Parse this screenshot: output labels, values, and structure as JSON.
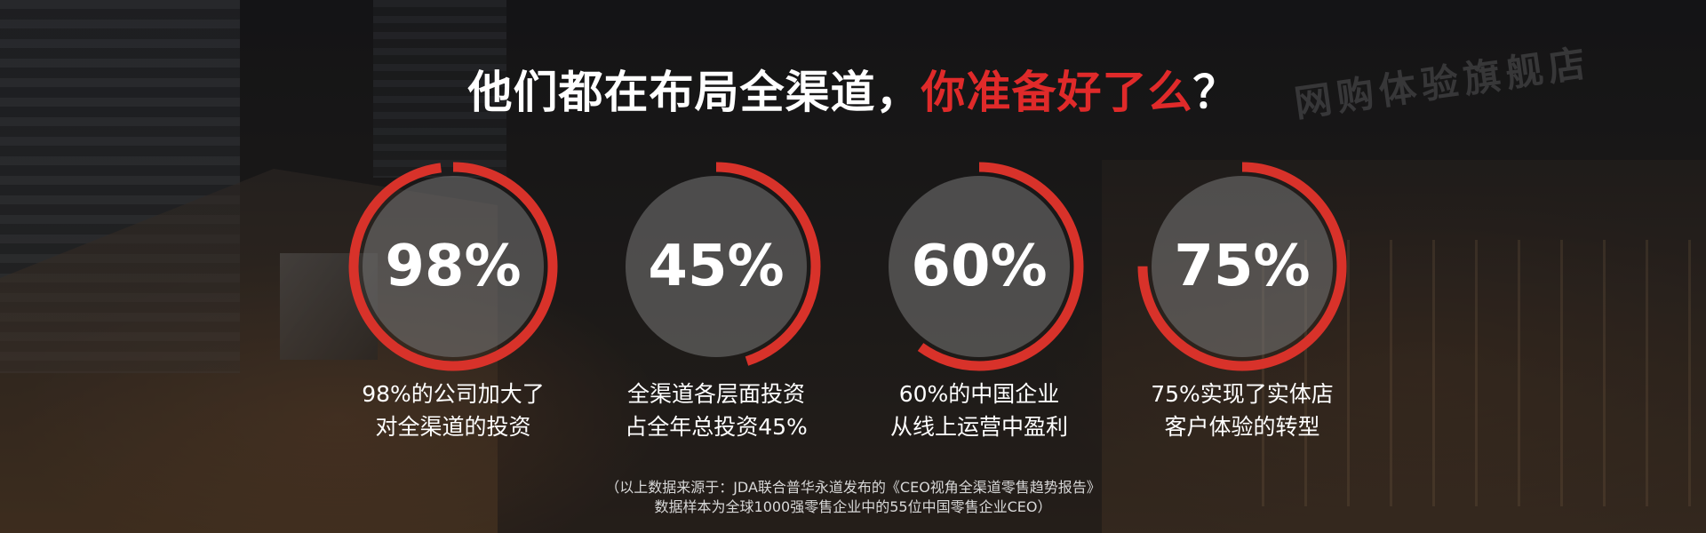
{
  "headline": {
    "part1": "他们都在布局全渠道，",
    "part2_accent": "你准备好了么",
    "part3": "？"
  },
  "background": {
    "sign_text": "网购体验旗舰店"
  },
  "colors": {
    "accent": "#e02a2a",
    "ring": "#d8322a",
    "disc": "rgba(120,120,120,0.55)"
  },
  "stats": [
    {
      "value": "98%",
      "fraction": 0.98,
      "line1": "98%的公司加大了",
      "line2": "对全渠道的投资"
    },
    {
      "value": "45%",
      "fraction": 0.45,
      "line1": "全渠道各层面投资",
      "line2": "占全年总投资45%"
    },
    {
      "value": "60%",
      "fraction": 0.6,
      "line1": "60%的中国企业",
      "line2": "从线上运营中盈利"
    },
    {
      "value": "75%",
      "fraction": 0.75,
      "line1": "75%实现了实体店",
      "line2": "客户体验的转型"
    }
  ],
  "source": {
    "line1": "（以上数据来源于：JDA联合普华永道发布的《CEO视角全渠道零售趋势报告》",
    "line2": "数据样本为全球1000强零售企业中的55位中国零售企业CEO）"
  }
}
